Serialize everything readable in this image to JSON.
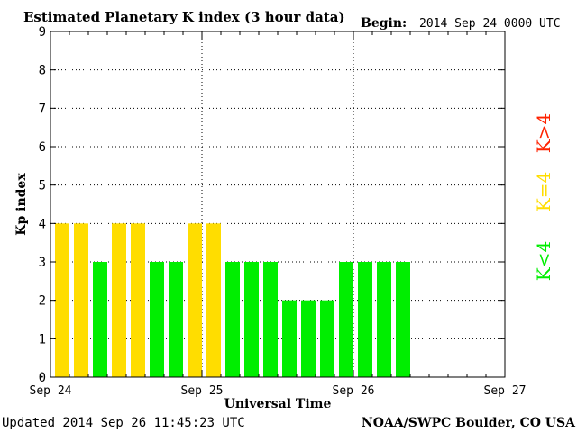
{
  "header": {
    "title": "Estimated Planetary K index (3 hour data)",
    "begin_label": "Begin:",
    "begin_value": "2014 Sep 24 0000 UTC"
  },
  "footer": {
    "updated": "Updated 2014 Sep 26 11:45:23 UTC",
    "source": "NOAA/SWPC Boulder, CO USA"
  },
  "legend": {
    "k_greater": "K>4",
    "k_equal": "K=4",
    "k_less": "K<4"
  },
  "colors": {
    "k_less_than_4": "#00ee00",
    "k_equal_4": "#ffdd00",
    "k_greater_than_4": "#ff2200"
  },
  "chart_data": {
    "type": "bar",
    "title": "Estimated Planetary K index (3 hour data)",
    "xlabel": "Universal Time",
    "ylabel": "Kp index",
    "ylim": [
      0,
      9
    ],
    "yticks": [
      "0",
      "1",
      "2",
      "3",
      "4",
      "5",
      "6",
      "7",
      "8",
      "9"
    ],
    "xtick_labels": [
      "Sep 24",
      "Sep 25",
      "Sep 26",
      "Sep 27"
    ],
    "bin_hours": 3,
    "values": [
      4,
      4,
      3,
      4,
      4,
      3,
      3,
      4,
      4,
      3,
      3,
      3,
      2,
      2,
      2,
      3,
      3,
      3,
      3
    ],
    "grid": true,
    "legend_position": "right"
  }
}
